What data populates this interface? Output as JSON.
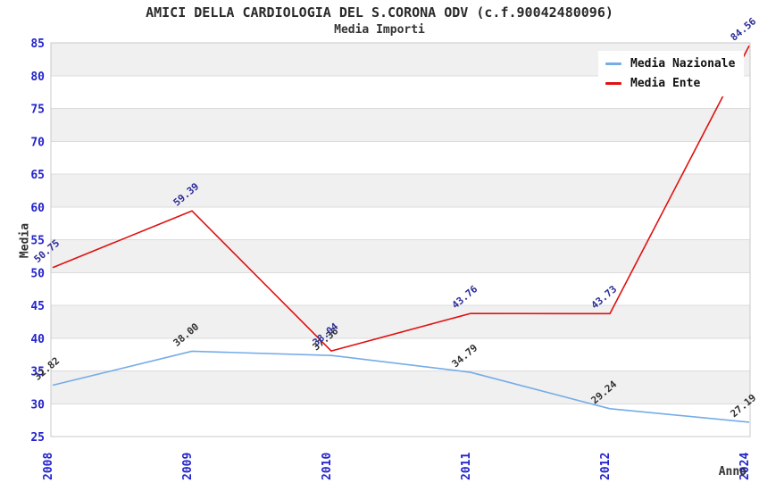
{
  "header": {
    "title": "AMICI DELLA CARDIOLOGIA DEL S.CORONA ODV (c.f.90042480096)",
    "subtitle": "Media Importi"
  },
  "chart_data": {
    "type": "line",
    "categories": [
      "2008",
      "2009",
      "2010",
      "2011",
      "2012",
      "2024"
    ],
    "series": [
      {
        "name": "Media Nazionale",
        "color": "#74ace8",
        "label_color": "#333333",
        "values": [
          32.82,
          38.0,
          37.36,
          34.79,
          29.24,
          27.19
        ]
      },
      {
        "name": "Media Ente",
        "color": "#e01010",
        "label_color": "#2e2e99",
        "values": [
          50.75,
          59.39,
          38.04,
          43.76,
          43.73,
          84.56
        ]
      }
    ],
    "xlabel": "Anno",
    "ylabel": "Media",
    "ylim": [
      25,
      85
    ],
    "yticks": [
      25,
      30,
      35,
      40,
      45,
      50,
      55,
      60,
      65,
      70,
      75,
      80,
      85
    ],
    "grid": "horizontal-bands",
    "legend_position": "top-right",
    "point_label_decimals": 2,
    "colors": {
      "tick_label": "#2323cc",
      "axis_title": "#333333",
      "title_text": "#2a2a2a",
      "band": "#f0f0f0",
      "grid_line": "#dcdcdc",
      "border": "#c8c8c8",
      "legend_text": "#111111",
      "background": "#ffffff"
    }
  }
}
